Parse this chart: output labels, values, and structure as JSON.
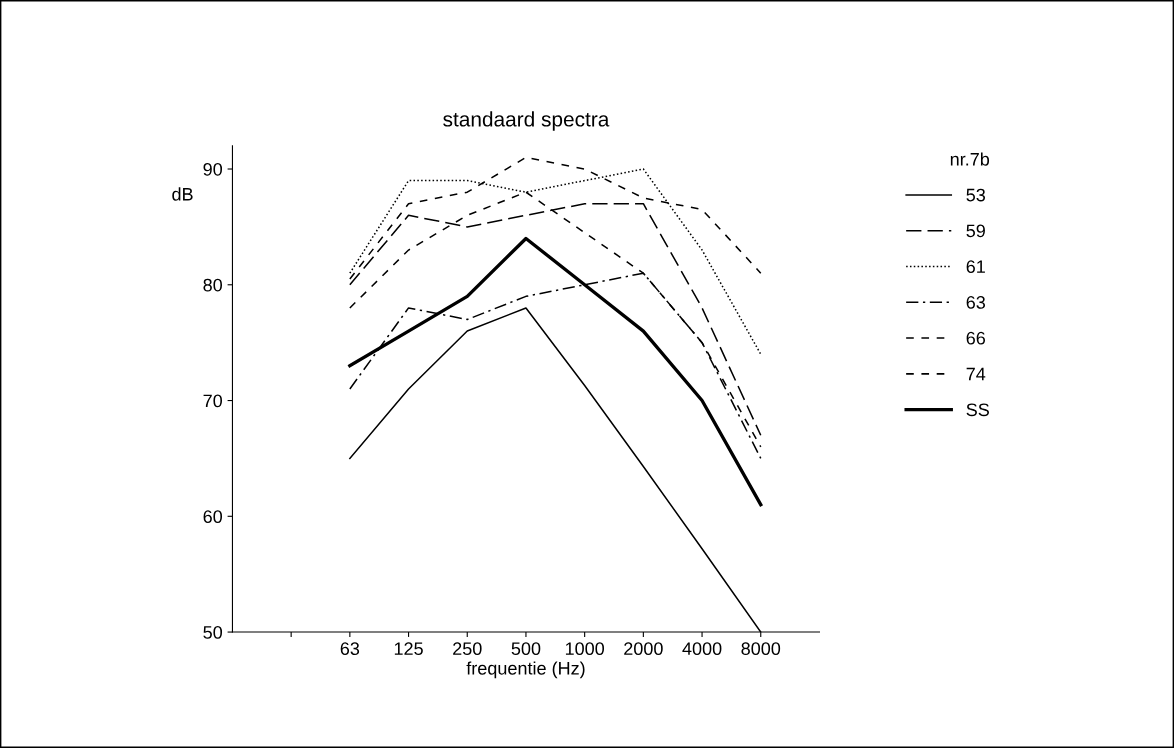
{
  "chart_data": {
    "type": "line",
    "title": "standaard spectra",
    "xlabel": "frequentie (Hz)",
    "ylabel": "dB",
    "legend_title": "nr.7b",
    "categories": [
      null,
      "63",
      "125",
      "250",
      "500",
      "1000",
      "2000",
      "4000",
      "8000"
    ],
    "series": [
      {
        "name": "53",
        "color": "#000000",
        "line_style": "solid",
        "values": [
          null,
          65,
          71,
          76,
          78,
          71.3,
          64.3,
          57.2,
          50
        ]
      },
      {
        "name": "59",
        "color": "#000000",
        "line_style": "longdash",
        "values": [
          null,
          80,
          86,
          85,
          86,
          87,
          87,
          78,
          67
        ]
      },
      {
        "name": "61",
        "color": "#000000",
        "line_style": "dotted",
        "values": [
          null,
          81,
          89,
          89,
          88,
          89,
          90,
          83,
          74
        ]
      },
      {
        "name": "63",
        "color": "#000000",
        "line_style": "dashdot",
        "values": [
          null,
          71,
          78,
          77,
          79,
          80,
          81,
          75,
          65
        ]
      },
      {
        "name": "66",
        "color": "#000000",
        "line_style": "dashed",
        "values": [
          null,
          80.5,
          87,
          88,
          91,
          90,
          87.5,
          86.5,
          81
        ]
      },
      {
        "name": "74",
        "color": "#000000",
        "line_style": "dashed",
        "values": [
          null,
          78,
          83,
          86,
          88,
          84.5,
          81,
          75,
          66
        ]
      },
      {
        "name": "SS",
        "color": "#000000",
        "line_style": "solid",
        "values": [
          null,
          73,
          76,
          79,
          84,
          80,
          76,
          70,
          61
        ]
      }
    ],
    "ylim": [
      50,
      92
    ],
    "yticks": [
      50,
      60,
      70,
      80,
      90
    ],
    "grid": false,
    "legend": "right",
    "marker": "none"
  }
}
